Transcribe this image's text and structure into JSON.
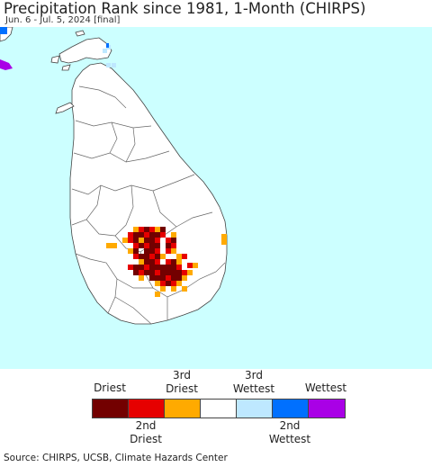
{
  "header": {
    "title": "Precipitation Rank since 1981, 1-Month (CHIRPS)",
    "subtitle": "Jun. 6 - Jul. 5, 2024 [final]"
  },
  "map": {
    "ocean_color": "#ccffff",
    "land_color": "#ffffff",
    "border_color": "#444444"
  },
  "legend": {
    "top_labels": [
      {
        "text": "Driest"
      },
      {
        "text": "3rd\nDriest"
      },
      {
        "text": "3rd\nWettest"
      },
      {
        "text": "Wettest"
      }
    ],
    "bottom_labels": [
      {
        "text": "2nd\nDriest"
      },
      {
        "text": "2nd\nWettest"
      }
    ],
    "categories": [
      {
        "name": "driest",
        "color": "#730000"
      },
      {
        "name": "2nd-driest",
        "color": "#e60000"
      },
      {
        "name": "3rd-driest",
        "color": "#ffaa00"
      },
      {
        "name": "normal",
        "color": "#ffffff"
      },
      {
        "name": "3rd-wettest",
        "color": "#bee8ff"
      },
      {
        "name": "2nd-wettest",
        "color": "#0070ff"
      },
      {
        "name": "wettest",
        "color": "#a900e6"
      }
    ]
  },
  "footer": {
    "source": "Source: CHIRPS, UCSB, Climate Hazards Center"
  }
}
